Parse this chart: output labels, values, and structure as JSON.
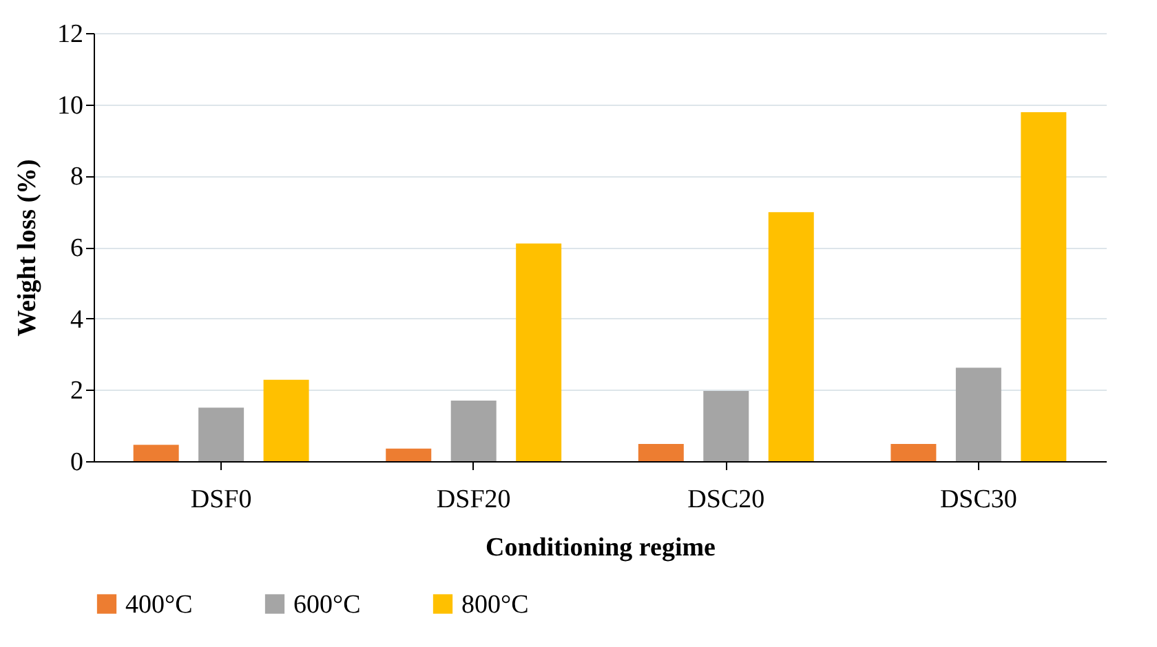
{
  "chart_data": {
    "type": "bar",
    "xlabel": "Conditioning regime",
    "ylabel": "Weight loss (%)",
    "categories": [
      "DSF0",
      "DSF20",
      "DSC20",
      "DSC30"
    ],
    "series": [
      {
        "name": "400°C",
        "color": "#ed7d31",
        "values": [
          0.46,
          0.35,
          0.48,
          0.48
        ]
      },
      {
        "name": "600°C",
        "color": "#a5a5a5",
        "values": [
          1.5,
          1.7,
          1.97,
          2.62
        ]
      },
      {
        "name": "800°C",
        "color": "#ffc000",
        "values": [
          2.28,
          6.1,
          6.98,
          9.78
        ]
      }
    ],
    "ylim": [
      0,
      12
    ],
    "yticks": [
      0,
      2,
      4,
      6,
      8,
      10,
      12
    ],
    "grid": "y",
    "legend": "bottom"
  }
}
